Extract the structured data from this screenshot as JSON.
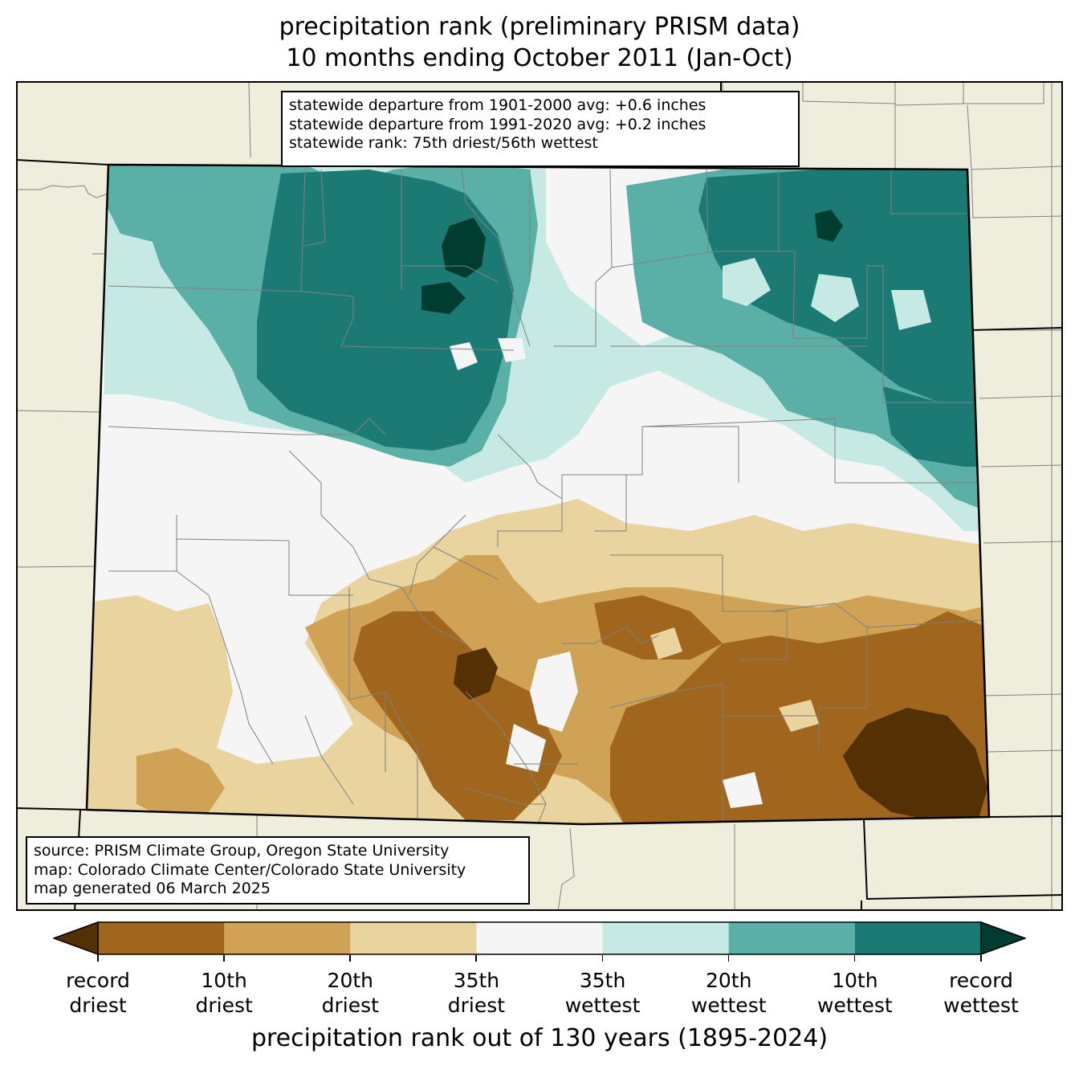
{
  "title": {
    "line1": "precipitation rank (preliminary PRISM data)",
    "line2": "10 months ending October 2011 (Jan-Oct)"
  },
  "stats_box": {
    "line1": "statewide departure from 1901-2000 avg: +0.6 inches",
    "line2": "statewide departure from 1991-2020 avg: +0.2 inches",
    "line3": "statewide rank: 75th driest/56th wettest"
  },
  "source_box": {
    "line1": "source: PRISM Climate Group, Oregon State University",
    "line2": "map: Colorado Climate Center/Colorado State University",
    "line3": "map generated 06 March 2025"
  },
  "colors": {
    "background": "#efeedc",
    "county_line": "#808080",
    "record_driest": "#543005",
    "rank_10_driest": "#a0661d",
    "rank_20_driest": "#cfa255",
    "rank_35_driest": "#e9d39e",
    "near_normal": "#f4f5f4",
    "rank_35_wettest": "#c6eae3",
    "rank_20_wettest": "#5aafa6",
    "rank_10_wettest": "#1b7b74",
    "record_wettest": "#003c30"
  },
  "colorbar": {
    "colors": [
      "#a0661d",
      "#cfa255",
      "#e9d39e",
      "#f4f5f4",
      "#c6eae3",
      "#5aafa6",
      "#1b7b74"
    ],
    "ext_low": "#543005",
    "ext_high": "#003c30",
    "ticks": [
      {
        "line1": "record",
        "line2": "driest"
      },
      {
        "line1": "10th",
        "line2": "driest"
      },
      {
        "line1": "20th",
        "line2": "driest"
      },
      {
        "line1": "35th",
        "line2": "driest"
      },
      {
        "line1": "35th",
        "line2": "wettest"
      },
      {
        "line1": "20th",
        "line2": "wettest"
      },
      {
        "line1": "10th",
        "line2": "wettest"
      },
      {
        "line1": "record",
        "line2": "wettest"
      }
    ],
    "label": "precipitation rank out of 130 years (1895-2024)"
  }
}
